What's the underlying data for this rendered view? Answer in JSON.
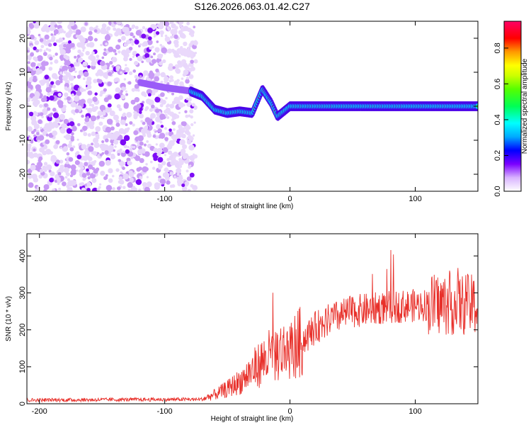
{
  "page_title": "S126.2026.063.01.42.C27",
  "chart_data": [
    {
      "type": "heatmap",
      "title": "S126.2026.063.01.42.C27",
      "xlabel": "Height of straight line (km)",
      "ylabel": "Frequency (Hz)",
      "xlim": [
        -210,
        150
      ],
      "ylim": [
        -25,
        25
      ],
      "xticks": [
        -200,
        -100,
        0,
        100
      ],
      "yticks": [
        -20,
        -10,
        0,
        10,
        20
      ],
      "colorbar": {
        "label": "Normalized spectral amplitude",
        "range": [
          0,
          0.95
        ],
        "ticks": [
          0.0,
          0.2,
          0.4,
          0.6,
          0.8
        ]
      },
      "ridge": {
        "description_points_x": [
          -120,
          -100,
          -80,
          -70,
          -60,
          -50,
          -40,
          -30,
          -22,
          -15,
          -10,
          0,
          150
        ],
        "description_points_y": [
          7,
          5.5,
          4.5,
          3,
          -1,
          -2,
          -1.5,
          -2,
          5,
          1,
          -3,
          0,
          0
        ]
      }
    },
    {
      "type": "line",
      "xlabel": "Height of straight line (km)",
      "ylabel": "SNR (10 * v/v)",
      "xlim": [
        -210,
        150
      ],
      "ylim": [
        0,
        460
      ],
      "xticks": [
        -200,
        -100,
        0,
        100
      ],
      "yticks": [
        0,
        100,
        200,
        300,
        400
      ],
      "series": [
        {
          "name": "SNR",
          "color": "#e8302a",
          "trend_x": [
            -210,
            -70,
            -60,
            -50,
            -40,
            -30,
            -20,
            -10,
            0,
            10,
            20,
            30,
            50,
            80,
            110,
            130,
            150
          ],
          "trend_y": [
            10,
            12,
            25,
            40,
            60,
            90,
            120,
            140,
            145,
            170,
            205,
            225,
            250,
            262,
            268,
            270,
            265
          ]
        }
      ]
    }
  ]
}
